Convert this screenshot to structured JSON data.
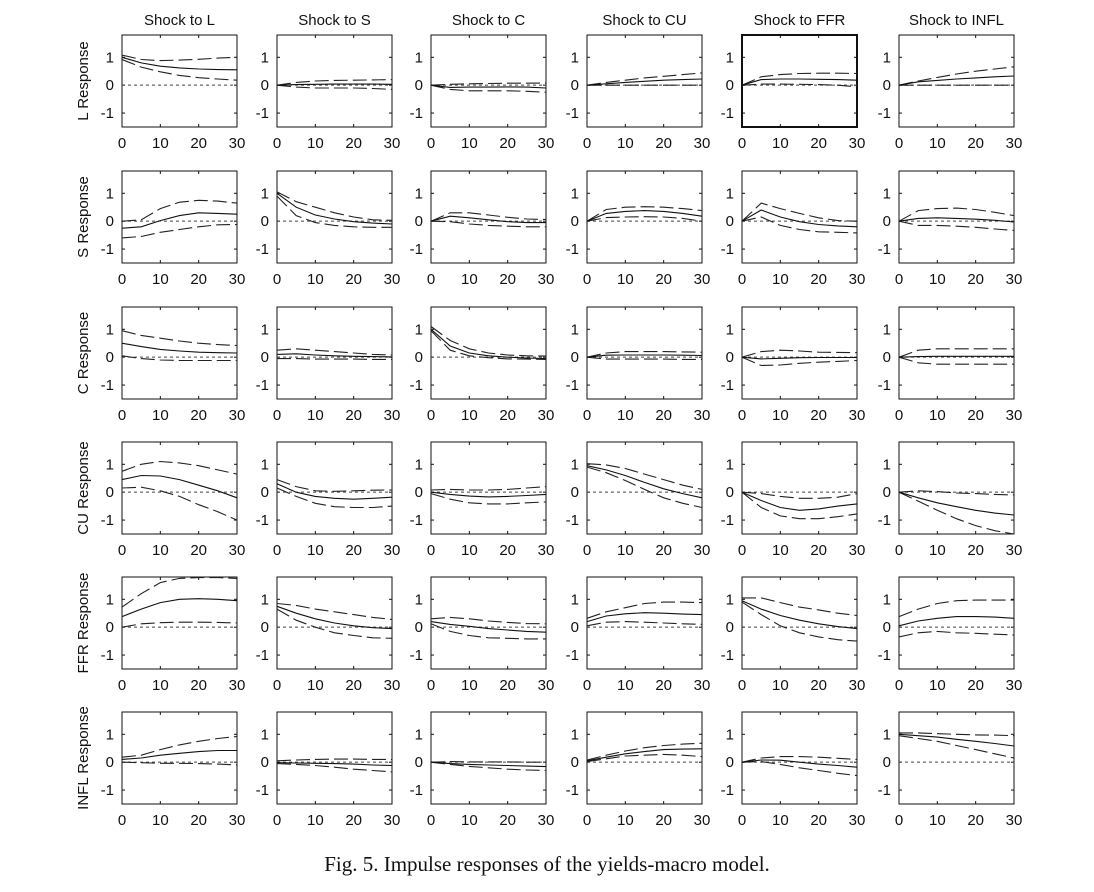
{
  "caption": "Fig. 5.  Impulse responses of the yields-macro model.",
  "chart_data": {
    "type": "line",
    "title": "Impulse responses of the yields-macro model",
    "layout": "6x6 grid of small multiples",
    "x": [
      0,
      5,
      10,
      15,
      20,
      25,
      30
    ],
    "xlim": [
      0,
      30
    ],
    "ylim": [
      -1.5,
      1.8
    ],
    "xticks": [
      "0",
      "10",
      "20",
      "30"
    ],
    "yticks": [
      "1",
      "0",
      "-1"
    ],
    "columns": [
      "Shock  to L",
      "Shock  to S",
      "Shock  to C",
      "Shock to CU",
      "Shock  to FFR",
      "Shock to INFL"
    ],
    "rows": [
      "L Response",
      "S Response",
      "C Response",
      "CU Response",
      "FFR Response",
      "INFL Response"
    ],
    "series_style": {
      "estimate": "solid",
      "lower_band": "dashed",
      "upper_band": "dashed",
      "zero": "dotted"
    },
    "panels": [
      [
        {
          "est": [
            1.0,
            0.8,
            0.68,
            0.62,
            0.58,
            0.56,
            0.55
          ],
          "lo": [
            0.92,
            0.65,
            0.48,
            0.35,
            0.27,
            0.22,
            0.18
          ],
          "hi": [
            1.08,
            0.92,
            0.88,
            0.9,
            0.93,
            0.97,
            1.0
          ]
        },
        {
          "est": [
            0.0,
            0.02,
            0.03,
            0.04,
            0.04,
            0.04,
            0.03
          ],
          "lo": [
            0.0,
            -0.07,
            -0.1,
            -0.1,
            -0.1,
            -0.12,
            -0.15
          ],
          "hi": [
            0.0,
            0.1,
            0.15,
            0.17,
            0.18,
            0.19,
            0.2
          ]
        },
        {
          "est": [
            0.0,
            -0.08,
            -0.07,
            -0.07,
            -0.06,
            -0.07,
            -0.1
          ],
          "lo": [
            0.0,
            -0.15,
            -0.2,
            -0.2,
            -0.2,
            -0.22,
            -0.25
          ],
          "hi": [
            0.0,
            0.03,
            0.05,
            0.06,
            0.07,
            0.07,
            0.08
          ]
        },
        {
          "est": [
            0.0,
            0.05,
            0.1,
            0.14,
            0.18,
            0.2,
            0.22
          ],
          "lo": [
            0.0,
            0.0,
            0.0,
            0.0,
            0.0,
            0.0,
            0.0
          ],
          "hi": [
            0.0,
            0.1,
            0.18,
            0.26,
            0.32,
            0.38,
            0.44
          ]
        },
        {
          "est": [
            0.0,
            0.2,
            0.22,
            0.22,
            0.21,
            0.2,
            0.18
          ],
          "lo": [
            0.0,
            0.04,
            0.04,
            0.03,
            0.02,
            0.0,
            -0.06
          ],
          "hi": [
            0.0,
            0.3,
            0.38,
            0.42,
            0.43,
            0.43,
            0.42
          ]
        },
        {
          "est": [
            0.0,
            0.12,
            0.17,
            0.22,
            0.26,
            0.3,
            0.33
          ],
          "lo": [
            0.0,
            0.0,
            0.0,
            0.0,
            0.0,
            0.0,
            0.0
          ],
          "hi": [
            0.0,
            0.15,
            0.28,
            0.4,
            0.5,
            0.58,
            0.66
          ]
        }
      ],
      [
        {
          "est": [
            -0.25,
            -0.2,
            0.02,
            0.2,
            0.3,
            0.28,
            0.25
          ],
          "lo": [
            -0.6,
            -0.55,
            -0.4,
            -0.3,
            -0.2,
            -0.13,
            -0.12
          ],
          "hi": [
            0.0,
            0.05,
            0.45,
            0.68,
            0.75,
            0.72,
            0.65
          ]
        },
        {
          "est": [
            1.0,
            0.5,
            0.22,
            0.08,
            -0.02,
            -0.07,
            -0.1
          ],
          "lo": [
            0.9,
            0.2,
            -0.05,
            -0.15,
            -0.2,
            -0.22,
            -0.22
          ],
          "hi": [
            1.05,
            0.7,
            0.5,
            0.3,
            0.15,
            0.05,
            0.03
          ]
        },
        {
          "est": [
            0.0,
            0.18,
            0.12,
            0.05,
            -0.02,
            -0.05,
            -0.05
          ],
          "lo": [
            0.0,
            -0.02,
            -0.1,
            -0.15,
            -0.18,
            -0.2,
            -0.2
          ],
          "hi": [
            0.0,
            0.3,
            0.3,
            0.22,
            0.14,
            0.08,
            0.06
          ]
        },
        {
          "est": [
            0.0,
            0.28,
            0.35,
            0.38,
            0.35,
            0.28,
            0.18
          ],
          "lo": [
            0.0,
            0.13,
            0.15,
            0.16,
            0.15,
            0.1,
            0.0
          ],
          "hi": [
            0.0,
            0.42,
            0.5,
            0.52,
            0.5,
            0.45,
            0.38
          ]
        },
        {
          "est": [
            0.0,
            0.4,
            0.15,
            -0.02,
            -0.12,
            -0.17,
            -0.2
          ],
          "lo": [
            0.0,
            0.15,
            -0.15,
            -0.3,
            -0.38,
            -0.4,
            -0.42
          ],
          "hi": [
            0.0,
            0.65,
            0.45,
            0.28,
            0.12,
            0.02,
            0.0
          ]
        },
        {
          "est": [
            0.0,
            0.1,
            0.12,
            0.1,
            0.07,
            0.03,
            -0.03
          ],
          "lo": [
            0.0,
            -0.15,
            -0.15,
            -0.18,
            -0.22,
            -0.28,
            -0.33
          ],
          "hi": [
            0.0,
            0.38,
            0.45,
            0.47,
            0.42,
            0.32,
            0.2
          ]
        }
      ],
      [
        {
          "est": [
            0.5,
            0.38,
            0.28,
            0.22,
            0.18,
            0.16,
            0.15
          ],
          "lo": [
            0.05,
            -0.05,
            -0.1,
            -0.12,
            -0.12,
            -0.12,
            -0.12
          ],
          "hi": [
            0.95,
            0.78,
            0.68,
            0.58,
            0.5,
            0.45,
            0.42
          ]
        },
        {
          "est": [
            0.1,
            0.12,
            0.08,
            0.05,
            0.03,
            0.02,
            0.01
          ],
          "lo": [
            -0.05,
            -0.05,
            -0.07,
            -0.07,
            -0.07,
            -0.08,
            -0.08
          ],
          "hi": [
            0.25,
            0.3,
            0.25,
            0.2,
            0.15,
            0.1,
            0.08
          ]
        },
        {
          "est": [
            1.0,
            0.4,
            0.15,
            0.05,
            0.0,
            -0.03,
            -0.05
          ],
          "lo": [
            0.95,
            0.25,
            0.05,
            -0.02,
            -0.06,
            -0.07,
            -0.08
          ],
          "hi": [
            1.1,
            0.6,
            0.3,
            0.15,
            0.08,
            0.05,
            0.04
          ]
        },
        {
          "est": [
            0.0,
            0.07,
            0.08,
            0.08,
            0.08,
            0.07,
            0.06
          ],
          "lo": [
            0.0,
            -0.07,
            -0.07,
            -0.07,
            -0.07,
            -0.08,
            -0.08
          ],
          "hi": [
            0.0,
            0.15,
            0.2,
            0.2,
            0.2,
            0.19,
            0.18
          ]
        },
        {
          "est": [
            0.0,
            -0.06,
            -0.04,
            -0.02,
            -0.01,
            -0.01,
            -0.01
          ],
          "lo": [
            0.0,
            -0.3,
            -0.28,
            -0.22,
            -0.18,
            -0.15,
            -0.12
          ],
          "hi": [
            0.0,
            0.2,
            0.25,
            0.22,
            0.18,
            0.17,
            0.16
          ]
        },
        {
          "est": [
            0.0,
            0.02,
            0.03,
            0.03,
            0.03,
            0.03,
            0.03
          ],
          "lo": [
            0.0,
            -0.2,
            -0.25,
            -0.25,
            -0.25,
            -0.25,
            -0.25
          ],
          "hi": [
            0.0,
            0.25,
            0.3,
            0.3,
            0.3,
            0.3,
            0.3
          ]
        }
      ],
      [
        {
          "est": [
            0.45,
            0.6,
            0.58,
            0.45,
            0.25,
            0.05,
            -0.2
          ],
          "lo": [
            0.15,
            0.18,
            0.05,
            -0.15,
            -0.45,
            -0.7,
            -1.0
          ],
          "hi": [
            0.75,
            1.0,
            1.1,
            1.05,
            0.95,
            0.8,
            0.65
          ]
        },
        {
          "est": [
            0.3,
            0.0,
            -0.15,
            -0.22,
            -0.25,
            -0.22,
            -0.18
          ],
          "lo": [
            0.15,
            -0.15,
            -0.4,
            -0.52,
            -0.55,
            -0.55,
            -0.5
          ],
          "hi": [
            0.45,
            0.2,
            0.05,
            0.03,
            0.05,
            0.07,
            0.08
          ]
        },
        {
          "est": [
            0.0,
            -0.08,
            -0.14,
            -0.17,
            -0.15,
            -0.12,
            -0.08
          ],
          "lo": [
            -0.05,
            -0.25,
            -0.38,
            -0.42,
            -0.42,
            -0.38,
            -0.35
          ],
          "hi": [
            0.08,
            0.1,
            0.08,
            0.08,
            0.1,
            0.15,
            0.2
          ]
        },
        {
          "est": [
            0.95,
            0.8,
            0.6,
            0.35,
            0.12,
            -0.05,
            -0.2
          ],
          "lo": [
            0.9,
            0.7,
            0.42,
            0.1,
            -0.2,
            -0.4,
            -0.55
          ],
          "hi": [
            1.02,
            0.98,
            0.85,
            0.65,
            0.45,
            0.25,
            0.1
          ]
        },
        {
          "est": [
            0.0,
            -0.3,
            -0.55,
            -0.65,
            -0.6,
            -0.5,
            -0.42
          ],
          "lo": [
            0.0,
            -0.55,
            -0.85,
            -0.95,
            -0.95,
            -0.88,
            -0.78
          ],
          "hi": [
            0.0,
            -0.05,
            -0.15,
            -0.22,
            -0.22,
            -0.18,
            -0.05
          ]
        },
        {
          "est": [
            0.0,
            -0.2,
            -0.38,
            -0.52,
            -0.65,
            -0.75,
            -0.82
          ],
          "lo": [
            0.0,
            -0.32,
            -0.65,
            -0.95,
            -1.2,
            -1.38,
            -1.5
          ],
          "hi": [
            0.0,
            0.05,
            0.02,
            -0.03,
            -0.05,
            -0.08,
            -0.1
          ]
        }
      ],
      [
        {
          "est": [
            0.38,
            0.65,
            0.88,
            1.0,
            1.02,
            1.0,
            0.95
          ],
          "lo": [
            0.0,
            0.12,
            0.16,
            0.18,
            0.18,
            0.17,
            0.15
          ],
          "hi": [
            0.72,
            1.2,
            1.6,
            1.75,
            1.78,
            1.78,
            1.75
          ]
        },
        {
          "est": [
            0.75,
            0.5,
            0.3,
            0.15,
            0.05,
            -0.02,
            -0.05
          ],
          "lo": [
            0.65,
            0.25,
            0.0,
            -0.2,
            -0.3,
            -0.38,
            -0.4
          ],
          "hi": [
            0.85,
            0.78,
            0.65,
            0.55,
            0.45,
            0.35,
            0.28
          ]
        },
        {
          "est": [
            0.2,
            0.1,
            0.03,
            -0.05,
            -0.1,
            -0.15,
            -0.18
          ],
          "lo": [
            0.12,
            -0.15,
            -0.3,
            -0.38,
            -0.4,
            -0.42,
            -0.42
          ],
          "hi": [
            0.3,
            0.35,
            0.3,
            0.22,
            0.17,
            0.13,
            0.12
          ]
        },
        {
          "est": [
            0.2,
            0.4,
            0.48,
            0.52,
            0.5,
            0.47,
            0.45
          ],
          "lo": [
            0.05,
            0.18,
            0.2,
            0.18,
            0.15,
            0.12,
            0.1
          ],
          "hi": [
            0.32,
            0.55,
            0.7,
            0.85,
            0.9,
            0.9,
            0.88
          ]
        },
        {
          "est": [
            0.95,
            0.65,
            0.42,
            0.25,
            0.12,
            0.02,
            -0.05
          ],
          "lo": [
            0.9,
            0.45,
            0.05,
            -0.2,
            -0.35,
            -0.45,
            -0.5
          ],
          "hi": [
            1.05,
            1.05,
            0.88,
            0.72,
            0.62,
            0.5,
            0.42
          ]
        },
        {
          "est": [
            0.05,
            0.22,
            0.32,
            0.38,
            0.38,
            0.36,
            0.32
          ],
          "lo": [
            -0.35,
            -0.2,
            -0.15,
            -0.2,
            -0.22,
            -0.25,
            -0.28
          ],
          "hi": [
            0.38,
            0.65,
            0.85,
            0.95,
            0.97,
            0.97,
            0.97
          ]
        }
      ],
      [
        {
          "est": [
            0.1,
            0.15,
            0.25,
            0.32,
            0.38,
            0.42,
            0.42
          ],
          "lo": [
            0.0,
            -0.02,
            -0.04,
            -0.04,
            -0.05,
            -0.07,
            -0.1
          ],
          "hi": [
            0.18,
            0.25,
            0.45,
            0.62,
            0.75,
            0.85,
            0.92
          ]
        },
        {
          "est": [
            -0.02,
            -0.03,
            -0.04,
            -0.05,
            -0.07,
            -0.1,
            -0.12
          ],
          "lo": [
            -0.05,
            -0.08,
            -0.12,
            -0.18,
            -0.25,
            -0.3,
            -0.35
          ],
          "hi": [
            0.05,
            0.08,
            0.1,
            0.11,
            0.11,
            0.1,
            0.1
          ]
        },
        {
          "est": [
            0.0,
            -0.05,
            -0.08,
            -0.1,
            -0.12,
            -0.14,
            -0.16
          ],
          "lo": [
            0.0,
            -0.08,
            -0.15,
            -0.2,
            -0.25,
            -0.28,
            -0.3
          ],
          "hi": [
            0.0,
            0.02,
            0.01,
            0.01,
            0.01,
            0.0,
            0.0
          ]
        },
        {
          "est": [
            0.05,
            0.18,
            0.3,
            0.38,
            0.45,
            0.47,
            0.48
          ],
          "lo": [
            0.02,
            0.12,
            0.22,
            0.25,
            0.28,
            0.25,
            0.2
          ],
          "hi": [
            0.08,
            0.25,
            0.4,
            0.52,
            0.6,
            0.65,
            0.68
          ]
        },
        {
          "est": [
            0.0,
            0.08,
            0.07,
            0.0,
            -0.07,
            -0.12,
            -0.18
          ],
          "lo": [
            0.0,
            0.02,
            -0.08,
            -0.2,
            -0.3,
            -0.4,
            -0.48
          ],
          "hi": [
            0.0,
            0.15,
            0.2,
            0.2,
            0.18,
            0.14,
            0.1
          ]
        },
        {
          "est": [
            1.0,
            0.95,
            0.9,
            0.82,
            0.75,
            0.67,
            0.58
          ],
          "lo": [
            0.95,
            0.85,
            0.75,
            0.6,
            0.45,
            0.3,
            0.15
          ],
          "hi": [
            1.05,
            1.05,
            1.02,
            1.0,
            0.98,
            0.97,
            0.95
          ]
        }
      ]
    ]
  }
}
